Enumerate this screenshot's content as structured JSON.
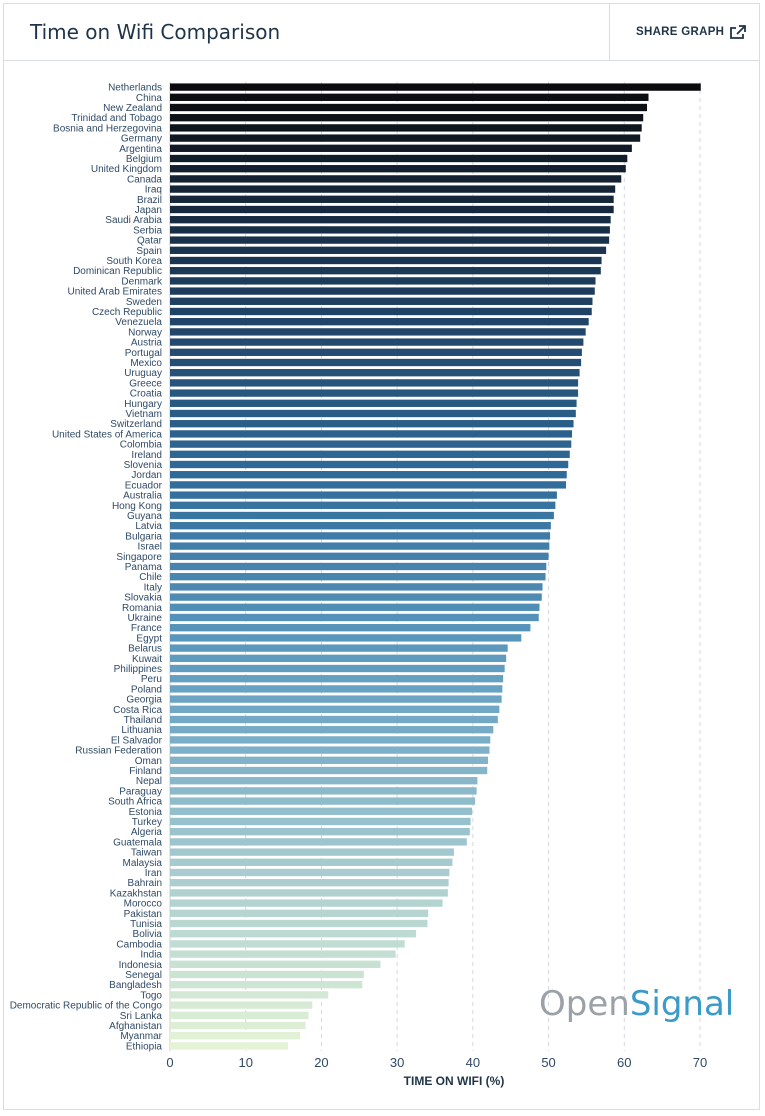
{
  "header": {
    "title": "Time on Wifi Comparison",
    "share_label": "SHARE GRAPH"
  },
  "logo": {
    "part1": "Open",
    "part2": "Signal"
  },
  "chart_data": {
    "type": "bar",
    "orientation": "horizontal",
    "xlabel": "TIME ON WIFI (%)",
    "xlim": [
      0,
      70
    ],
    "xticks": [
      0,
      10,
      20,
      30,
      40,
      50,
      60,
      70
    ],
    "grid": true,
    "categories": [
      "Netherlands",
      "China",
      "New Zealand",
      "Trinidad and Tobago",
      "Bosnia and Herzegovina",
      "Germany",
      "Argentina",
      "Belgium",
      "United Kingdom",
      "Canada",
      "Iraq",
      "Brazil",
      "Japan",
      "Saudi Arabia",
      "Serbia",
      "Qatar",
      "Spain",
      "South Korea",
      "Dominican Republic",
      "Denmark",
      "United Arab Emirates",
      "Sweden",
      "Czech Republic",
      "Venezuela",
      "Norway",
      "Austria",
      "Portugal",
      "Mexico",
      "Uruguay",
      "Greece",
      "Croatia",
      "Hungary",
      "Vietnam",
      "Switzerland",
      "United States of America",
      "Colombia",
      "Ireland",
      "Slovenia",
      "Jordan",
      "Ecuador",
      "Australia",
      "Hong Kong",
      "Guyana",
      "Latvia",
      "Bulgaria",
      "Israel",
      "Singapore",
      "Panama",
      "Chile",
      "Italy",
      "Slovakia",
      "Romania",
      "Ukraine",
      "France",
      "Egypt",
      "Belarus",
      "Kuwait",
      "Philippines",
      "Peru",
      "Poland",
      "Georgia",
      "Costa Rica",
      "Thailand",
      "Lithuania",
      "El Salvador",
      "Russian Federation",
      "Oman",
      "Finland",
      "Nepal",
      "Paraguay",
      "South Africa",
      "Estonia",
      "Turkey",
      "Algeria",
      "Guatemala",
      "Taiwan",
      "Malaysia",
      "Iran",
      "Bahrain",
      "Kazakhstan",
      "Morocco",
      "Pakistan",
      "Tunisia",
      "Bolivia",
      "Cambodia",
      "India",
      "Indonesia",
      "Senegal",
      "Bangladesh",
      "Togo",
      "Democratic Republic of the Congo",
      "Sri Lanka",
      "Afghanistan",
      "Myanmar",
      "Ethiopia"
    ],
    "values": [
      70.1,
      63.2,
      63.0,
      62.5,
      62.3,
      62.1,
      61.0,
      60.4,
      60.2,
      59.6,
      58.8,
      58.6,
      58.6,
      58.2,
      58.1,
      58.0,
      57.6,
      57.0,
      56.9,
      56.2,
      56.1,
      55.8,
      55.7,
      55.3,
      54.9,
      54.6,
      54.4,
      54.3,
      54.1,
      53.9,
      53.9,
      53.7,
      53.6,
      53.3,
      53.1,
      53.0,
      52.8,
      52.6,
      52.4,
      52.3,
      51.1,
      50.9,
      50.7,
      50.3,
      50.2,
      50.1,
      50.0,
      49.7,
      49.6,
      49.2,
      49.1,
      48.8,
      48.7,
      47.6,
      46.4,
      44.6,
      44.4,
      44.2,
      44.0,
      43.9,
      43.8,
      43.5,
      43.3,
      42.7,
      42.3,
      42.2,
      42.0,
      41.9,
      40.6,
      40.5,
      40.3,
      39.9,
      39.7,
      39.6,
      39.2,
      37.5,
      37.3,
      36.9,
      36.8,
      36.7,
      36.0,
      34.1,
      34.0,
      32.5,
      31.0,
      29.8,
      27.8,
      25.6,
      25.4,
      20.9,
      18.8,
      18.3,
      17.9,
      17.2,
      15.6
    ],
    "color_scale": [
      "#0b0b0d",
      "#1d3a5a",
      "#2e6a98",
      "#5f9cc0",
      "#a2c8cf",
      "#e4f3d6"
    ]
  }
}
